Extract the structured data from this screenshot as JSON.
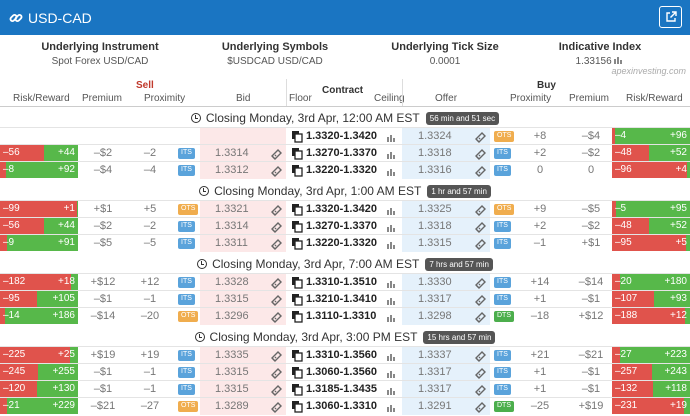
{
  "window": {
    "title": "USD-CAD",
    "link_icon": "link-icon",
    "external_icon": "external-link-icon"
  },
  "info": {
    "instrument_label": "Underlying Instrument",
    "instrument_value": "Spot Forex USD/CAD",
    "symbols_label": "Underlying Symbols",
    "symbols_value": "$USDCAD USD/CAD",
    "tick_label": "Underlying Tick Size",
    "tick_value": "0.0001",
    "index_label": "Indicative Index",
    "index_value": "1.33156",
    "watermark": "apexinvesting.com"
  },
  "headers": {
    "sell": "Sell",
    "buy": "Buy",
    "risk_reward_sell": "Risk/Reward",
    "premium_sell": "Premium",
    "proximity_sell": "Proximity",
    "bid": "Bid",
    "floor": "Floor",
    "contract": "Contract",
    "ceiling": "Ceiling",
    "offer": "Offer",
    "proximity_buy": "Proximity",
    "premium_buy": "Premium",
    "risk_reward_buy": "Risk/Reward"
  },
  "colors": {
    "title_bar": "#1a75c2",
    "risk": "#e0534c",
    "reward": "#57b84a",
    "bid_bg": "#fce8e8",
    "offer_bg": "#e5f1fb"
  },
  "groups": [
    {
      "title": "Closing Monday, 3rd Apr, 12:00 AM EST",
      "countdown": "56 min and 51 sec",
      "rows": [
        {
          "s_risk": "",
          "s_reward": "",
          "s_red": 0,
          "s_premium": "",
          "s_proximity": "",
          "s_tag": "",
          "bid": "",
          "contract": "1.3320-1.3420",
          "offer": "1.3324",
          "o_tag": "OTS",
          "b_proximity": "+8",
          "b_premium": "–$4",
          "b_risk": "–4",
          "b_reward": "+96",
          "b_red": 0.04
        },
        {
          "s_risk": "–56",
          "s_reward": "+44",
          "s_red": 0.56,
          "s_premium": "–$2",
          "s_proximity": "–2",
          "s_tag": "ITS",
          "bid": "1.3314",
          "contract": "1.3270-1.3370",
          "offer": "1.3318",
          "o_tag": "ITS",
          "b_proximity": "+2",
          "b_premium": "–$2",
          "b_risk": "–48",
          "b_reward": "+52",
          "b_red": 0.48
        },
        {
          "s_risk": "–8",
          "s_reward": "+92",
          "s_red": 0.08,
          "s_premium": "–$4",
          "s_proximity": "–4",
          "s_tag": "ITS",
          "bid": "1.3312",
          "contract": "1.3220-1.3320",
          "offer": "1.3316",
          "o_tag": "ITS",
          "b_proximity": "0",
          "b_premium": "0",
          "b_risk": "–96",
          "b_reward": "+4",
          "b_red": 0.96
        }
      ]
    },
    {
      "title": "Closing Monday, 3rd Apr, 1:00 AM EST",
      "countdown": "1 hr and 57 min",
      "rows": [
        {
          "s_risk": "–99",
          "s_reward": "+1",
          "s_red": 0.99,
          "s_premium": "+$1",
          "s_proximity": "+5",
          "s_tag": "OTS",
          "bid": "1.3321",
          "contract": "1.3320-1.3420",
          "offer": "1.3325",
          "o_tag": "OTS",
          "b_proximity": "+9",
          "b_premium": "–$5",
          "b_risk": "–5",
          "b_reward": "+95",
          "b_red": 0.05
        },
        {
          "s_risk": "–56",
          "s_reward": "+44",
          "s_red": 0.56,
          "s_premium": "–$2",
          "s_proximity": "–2",
          "s_tag": "ITS",
          "bid": "1.3314",
          "contract": "1.3270-1.3370",
          "offer": "1.3318",
          "o_tag": "ITS",
          "b_proximity": "+2",
          "b_premium": "–$2",
          "b_risk": "–48",
          "b_reward": "+52",
          "b_red": 0.48
        },
        {
          "s_risk": "–9",
          "s_reward": "+91",
          "s_red": 0.09,
          "s_premium": "–$5",
          "s_proximity": "–5",
          "s_tag": "ITS",
          "bid": "1.3311",
          "contract": "1.3220-1.3320",
          "offer": "1.3315",
          "o_tag": "ITS",
          "b_proximity": "–1",
          "b_premium": "+$1",
          "b_risk": "–95",
          "b_reward": "+5",
          "b_red": 0.95
        }
      ]
    },
    {
      "title": "Closing Monday, 3rd Apr, 7:00 AM EST",
      "countdown": "7 hrs and 57 min",
      "rows": [
        {
          "s_risk": "–182",
          "s_reward": "+18",
          "s_red": 0.91,
          "s_premium": "+$12",
          "s_proximity": "+12",
          "s_tag": "ITS",
          "bid": "1.3328",
          "contract": "1.3310-1.3510",
          "offer": "1.3330",
          "o_tag": "ITS",
          "b_proximity": "+14",
          "b_premium": "–$14",
          "b_risk": "–20",
          "b_reward": "+180",
          "b_red": 0.1
        },
        {
          "s_risk": "–95",
          "s_reward": "+105",
          "s_red": 0.475,
          "s_premium": "–$1",
          "s_proximity": "–1",
          "s_tag": "ITS",
          "bid": "1.3315",
          "contract": "1.3210-1.3410",
          "offer": "1.3317",
          "o_tag": "ITS",
          "b_proximity": "+1",
          "b_premium": "–$1",
          "b_risk": "–107",
          "b_reward": "+93",
          "b_red": 0.535
        },
        {
          "s_risk": "–14",
          "s_reward": "+186",
          "s_red": 0.07,
          "s_premium": "–$14",
          "s_proximity": "–20",
          "s_tag": "OTS",
          "bid": "1.3296",
          "contract": "1.3110-1.3310",
          "offer": "1.3298",
          "o_tag": "DTS",
          "b_proximity": "–18",
          "b_premium": "+$12",
          "b_risk": "–188",
          "b_reward": "+12",
          "b_red": 0.94
        }
      ]
    },
    {
      "title": "Closing Monday, 3rd Apr, 3:00 PM EST",
      "countdown": "15 hrs and 57 min",
      "rows": [
        {
          "s_risk": "–225",
          "s_reward": "+25",
          "s_red": 0.9,
          "s_premium": "+$19",
          "s_proximity": "+19",
          "s_tag": "ITS",
          "bid": "1.3335",
          "contract": "1.3310-1.3560",
          "offer": "1.3337",
          "o_tag": "ITS",
          "b_proximity": "+21",
          "b_premium": "–$21",
          "b_risk": "–27",
          "b_reward": "+223",
          "b_red": 0.108
        },
        {
          "s_risk": "–245",
          "s_reward": "+255",
          "s_red": 0.49,
          "s_premium": "–$1",
          "s_proximity": "–1",
          "s_tag": "ITS",
          "bid": "1.3315",
          "contract": "1.3060-1.3560",
          "offer": "1.3317",
          "o_tag": "ITS",
          "b_proximity": "+1",
          "b_premium": "–$1",
          "b_risk": "–257",
          "b_reward": "+243",
          "b_red": 0.514
        },
        {
          "s_risk": "–120",
          "s_reward": "+130",
          "s_red": 0.48,
          "s_premium": "–$1",
          "s_proximity": "–1",
          "s_tag": "ITS",
          "bid": "1.3315",
          "contract": "1.3185-1.3435",
          "offer": "1.3317",
          "o_tag": "ITS",
          "b_proximity": "+1",
          "b_premium": "–$1",
          "b_risk": "–132",
          "b_reward": "+118",
          "b_red": 0.528
        },
        {
          "s_risk": "–21",
          "s_reward": "+229",
          "s_red": 0.084,
          "s_premium": "–$21",
          "s_proximity": "–27",
          "s_tag": "OTS",
          "bid": "1.3289",
          "contract": "1.3060-1.3310",
          "offer": "1.3291",
          "o_tag": "DTS",
          "b_proximity": "–25",
          "b_premium": "+$19",
          "b_risk": "–231",
          "b_reward": "+19",
          "b_red": 0.924
        }
      ]
    }
  ]
}
